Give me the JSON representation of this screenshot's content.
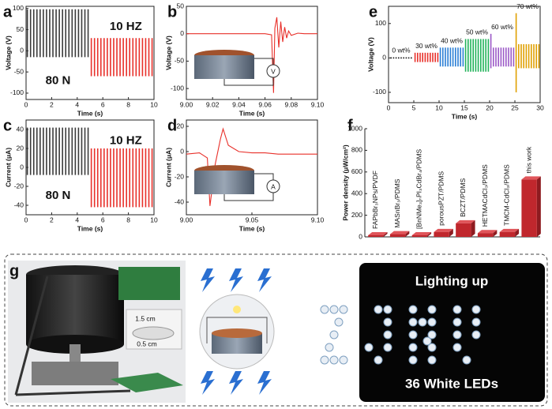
{
  "chart_data": [
    {
      "type": "spike",
      "label": "a",
      "x_label": "Time (s)",
      "y_label": "Voltage (V)",
      "annotations": [
        "10 HZ",
        "80 N"
      ],
      "xlim": [
        0,
        10
      ],
      "xticks": [
        0,
        2,
        4,
        6,
        8,
        10
      ],
      "ylim": [
        -115,
        105
      ],
      "yticks": [
        -100,
        -50,
        0,
        50,
        100
      ],
      "series": [
        {
          "color": "#3a3a3a",
          "x": [
            0.1,
            0.35,
            0.6,
            0.85,
            1.1,
            1.35,
            1.6,
            1.85,
            2.1,
            2.35,
            2.6,
            2.85,
            3.1,
            3.35,
            3.6,
            3.85,
            4.1,
            4.35,
            4.6,
            4.85
          ],
          "high": [
            98,
            98,
            98,
            98,
            98,
            98,
            98,
            98,
            98,
            98,
            98,
            98,
            98,
            98,
            98,
            98,
            98,
            98,
            98,
            98
          ],
          "low": [
            -15,
            -15,
            -15,
            -15,
            -15,
            -15,
            -15,
            -15,
            -15,
            -15,
            -15,
            -15,
            -15,
            -15,
            -15,
            -15,
            -15,
            -15,
            -15,
            -15
          ]
        },
        {
          "color": "#e8302a",
          "x": [
            5.1,
            5.35,
            5.6,
            5.85,
            6.1,
            6.35,
            6.6,
            6.85,
            7.1,
            7.35,
            7.6,
            7.85,
            8.1,
            8.35,
            8.6,
            8.85,
            9.1,
            9.35,
            9.6,
            9.85
          ],
          "high": [
            30,
            30,
            30,
            30,
            30,
            30,
            30,
            30,
            30,
            30,
            30,
            30,
            30,
            30,
            30,
            30,
            30,
            30,
            30,
            30
          ],
          "low": [
            -60,
            -60,
            -60,
            -60,
            -60,
            -60,
            -60,
            -60,
            -60,
            -60,
            -60,
            -60,
            -60,
            -60,
            -60,
            -60,
            -60,
            -60,
            -60,
            -60
          ]
        }
      ]
    },
    {
      "type": "line",
      "label": "b",
      "x_label": "Time (s)",
      "y_label": "Voltage (V)",
      "inset_symbol": "V",
      "xlim": [
        9.0,
        9.1
      ],
      "xticks": [
        {
          "value": 9.0,
          "label": "9.00"
        },
        {
          "value": 9.02,
          "label": "9.02"
        },
        {
          "value": 9.04,
          "label": "9.04"
        },
        {
          "value": 9.06,
          "label": "9.06"
        },
        {
          "value": 9.08,
          "label": "9.08"
        },
        {
          "value": 9.1,
          "label": "9.10"
        }
      ],
      "ylim": [
        -120,
        50
      ],
      "yticks": [
        -100,
        -50,
        0,
        50
      ],
      "series": [
        {
          "color": "#e8302a",
          "x": [
            9.0,
            9.02,
            9.04,
            9.06,
            9.065,
            9.0665,
            9.0675,
            9.069,
            9.0705,
            9.072,
            9.0735,
            9.075,
            9.0765,
            9.078,
            9.08,
            9.085,
            9.09,
            9.1
          ],
          "values": [
            0,
            0,
            0,
            0,
            -2,
            -108,
            10,
            30,
            -25,
            22,
            -15,
            12,
            -8,
            5,
            -3,
            1,
            0,
            0
          ]
        }
      ]
    },
    {
      "type": "spike",
      "label": "c",
      "x_label": "Time (s)",
      "y_label": "Current (μA)",
      "annotations": [
        "10 HZ",
        "80 N"
      ],
      "xlim": [
        0,
        10
      ],
      "xticks": [
        0,
        2,
        4,
        6,
        8,
        10
      ],
      "ylim": [
        -50,
        50
      ],
      "yticks": [
        -40,
        -20,
        0,
        20,
        40
      ],
      "series": [
        {
          "color": "#3a3a3a",
          "x": [
            0.1,
            0.35,
            0.6,
            0.85,
            1.1,
            1.35,
            1.6,
            1.85,
            2.1,
            2.35,
            2.6,
            2.85,
            3.1,
            3.35,
            3.6,
            3.85,
            4.1,
            4.35,
            4.6,
            4.85
          ],
          "high": [
            42,
            42,
            42,
            42,
            42,
            42,
            42,
            42,
            42,
            42,
            42,
            42,
            42,
            42,
            42,
            42,
            42,
            42,
            42,
            42
          ],
          "low": [
            -8,
            -8,
            -8,
            -8,
            -8,
            -8,
            -8,
            -8,
            -8,
            -8,
            -8,
            -8,
            -8,
            -8,
            -8,
            -8,
            -8,
            -8,
            -8,
            -8
          ]
        },
        {
          "color": "#e8302a",
          "x": [
            5.1,
            5.35,
            5.6,
            5.85,
            6.1,
            6.35,
            6.6,
            6.85,
            7.1,
            7.35,
            7.6,
            7.85,
            8.1,
            8.35,
            8.6,
            8.85,
            9.1,
            9.35,
            9.6,
            9.85
          ],
          "high": [
            20,
            20,
            20,
            20,
            20,
            20,
            20,
            20,
            20,
            20,
            20,
            20,
            20,
            20,
            20,
            20,
            20,
            20,
            20,
            20
          ],
          "low": [
            -42,
            -42,
            -42,
            -42,
            -42,
            -42,
            -42,
            -42,
            -42,
            -42,
            -42,
            -42,
            -42,
            -42,
            -42,
            -42,
            -42,
            -42,
            -42,
            -42
          ]
        }
      ]
    },
    {
      "type": "line",
      "label": "d",
      "x_label": "Time (s)",
      "y_label": "Current (μA)",
      "inset_symbol": "A",
      "xlim": [
        9.0,
        9.1
      ],
      "xticks": [
        {
          "value": 9.0,
          "label": "9.00"
        },
        {
          "value": 9.05,
          "label": "9.05"
        },
        {
          "value": 9.1,
          "label": "9.10"
        }
      ],
      "ylim": [
        -50,
        25
      ],
      "yticks": [
        -40,
        -20,
        0,
        20
      ],
      "series": [
        {
          "color": "#e8302a",
          "x": [
            9.0,
            9.01,
            9.016,
            9.018,
            9.022,
            9.026,
            9.028,
            9.032,
            9.04,
            9.05,
            9.06,
            9.07,
            9.08,
            9.09,
            9.1
          ],
          "values": [
            -2,
            -1,
            -5,
            -43,
            -10,
            10,
            18,
            5,
            0,
            -1,
            -1,
            -2,
            -2,
            -2,
            -2
          ]
        }
      ]
    },
    {
      "type": "spike",
      "label": "e",
      "x_label": "Time (s)",
      "y_label": "Voltage (V)",
      "xlim": [
        0,
        30
      ],
      "xticks": [
        0,
        5,
        10,
        15,
        20,
        25,
        30
      ],
      "ylim": [
        -130,
        150
      ],
      "yticks": [
        -100,
        0,
        100
      ],
      "series": [
        {
          "name": "0 wt%",
          "color": "#222222",
          "x": [
            0.5,
            1,
            1.5,
            2,
            2.5,
            3,
            3.5,
            4,
            4.5
          ],
          "high": [
            2,
            2,
            2,
            2,
            2,
            2,
            2,
            2,
            2
          ],
          "low": [
            -2,
            -2,
            -2,
            -2,
            -2,
            -2,
            -2,
            -2,
            -2
          ]
        },
        {
          "name": "30 wt%",
          "color": "#e8302a",
          "x": [
            5.25,
            5.75,
            6.25,
            6.75,
            7.25,
            7.75,
            8.25,
            8.75,
            9.25,
            9.75
          ],
          "high": [
            15,
            15,
            15,
            15,
            15,
            15,
            15,
            15,
            15,
            15
          ],
          "low": [
            -12,
            -12,
            -12,
            -12,
            -12,
            -12,
            -12,
            -12,
            -12,
            -12
          ]
        },
        {
          "name": "40 wt%",
          "color": "#2a7fd6",
          "x": [
            10.25,
            10.75,
            11.25,
            11.75,
            12.25,
            12.75,
            13.25,
            13.75,
            14.25,
            14.75
          ],
          "high": [
            30,
            30,
            30,
            30,
            30,
            30,
            30,
            30,
            30,
            30
          ],
          "low": [
            -25,
            -25,
            -25,
            -25,
            -25,
            -25,
            -25,
            -25,
            -25,
            -25
          ]
        },
        {
          "name": "50 wt%",
          "color": "#22b35a",
          "x": [
            15.25,
            15.75,
            16.25,
            16.75,
            17.25,
            17.75,
            18.25,
            18.75,
            19.25,
            19.75
          ],
          "high": [
            55,
            55,
            55,
            55,
            55,
            55,
            55,
            55,
            55,
            55
          ],
          "low": [
            -40,
            -40,
            -40,
            -40,
            -40,
            -40,
            -40,
            -40,
            -40,
            -40
          ]
        },
        {
          "name": "60 wt%",
          "color": "#9b59c7",
          "x": [
            20.25,
            20.75,
            21.25,
            21.75,
            22.25,
            22.75,
            23.25,
            23.75,
            24.25,
            24.75
          ],
          "high": [
            70,
            30,
            30,
            30,
            30,
            30,
            30,
            30,
            30,
            30
          ],
          "low": [
            -30,
            -25,
            -25,
            -25,
            -25,
            -25,
            -25,
            -25,
            -25,
            -25
          ]
        },
        {
          "name": "70 wt%",
          "color": "#e0a000",
          "x": [
            25.25,
            25.75,
            26.25,
            26.75,
            27.25,
            27.75,
            28.25,
            28.75,
            29.25,
            29.75
          ],
          "high": [
            130,
            40,
            40,
            40,
            40,
            40,
            40,
            40,
            40,
            40
          ],
          "low": [
            -100,
            -30,
            -30,
            -30,
            -30,
            -30,
            -30,
            -30,
            -30,
            -30
          ]
        }
      ]
    },
    {
      "type": "bar",
      "label": "f",
      "y_label": "Power density (μW/cm²)",
      "color": "#c0272d",
      "categories": [
        "FAPbBr₃NPs/PVDF",
        "MASnBr₃/PDMS",
        "[BnNMe₃]ₙPI₃CdBr₄/PDMS",
        "porousPZT/PDMS",
        "BCZT/PDMS",
        "HETMACdCl₃/PDMS",
        "TMCM-CdCl₃/PDMS",
        "this work"
      ],
      "values": [
        15,
        25,
        15,
        45,
        125,
        35,
        45,
        530
      ],
      "ylim": [
        0,
        1000
      ],
      "yticks": [
        0,
        200,
        400,
        600,
        800,
        1000
      ]
    }
  ],
  "photo_panel": {
    "label": "g",
    "inset_texts": [
      "1.5 cm",
      "0.5 cm"
    ],
    "lighting_text": "Lighting up",
    "led_text": "36 White LEDs"
  }
}
